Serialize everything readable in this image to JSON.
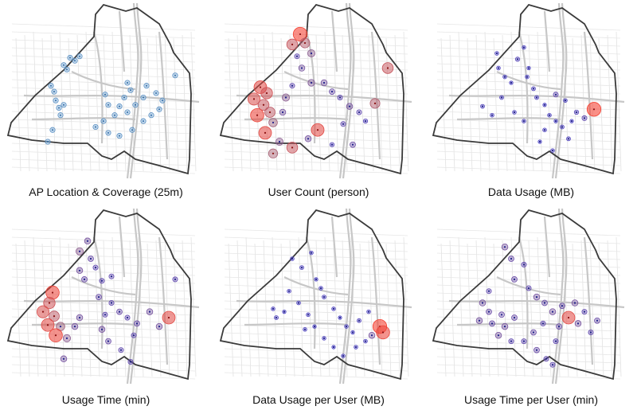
{
  "panels": [
    {
      "caption": "AP Location & Coverage (25m)",
      "style": "ap",
      "points": [
        [
          0.12,
          0.42,
          0
        ],
        [
          0.14,
          0.46,
          0
        ],
        [
          0.15,
          0.52,
          0
        ],
        [
          0.17,
          0.57,
          0
        ],
        [
          0.2,
          0.55,
          0
        ],
        [
          0.18,
          0.62,
          0
        ],
        [
          0.13,
          0.72,
          0
        ],
        [
          0.1,
          0.8,
          0
        ],
        [
          0.2,
          0.28,
          0
        ],
        [
          0.24,
          0.23,
          0
        ],
        [
          0.27,
          0.25,
          0
        ],
        [
          0.22,
          0.31,
          0
        ],
        [
          0.3,
          0.22,
          0
        ],
        [
          0.6,
          0.4,
          0
        ],
        [
          0.62,
          0.45,
          0
        ],
        [
          0.58,
          0.5,
          0
        ],
        [
          0.55,
          0.56,
          0
        ],
        [
          0.6,
          0.6,
          0
        ],
        [
          0.52,
          0.62,
          0
        ],
        [
          0.45,
          0.66,
          0
        ],
        [
          0.4,
          0.7,
          0
        ],
        [
          0.48,
          0.74,
          0
        ],
        [
          0.55,
          0.76,
          0
        ],
        [
          0.63,
          0.72,
          0
        ],
        [
          0.7,
          0.66,
          0
        ],
        [
          0.75,
          0.62,
          0
        ],
        [
          0.8,
          0.58,
          0
        ],
        [
          0.82,
          0.52,
          0
        ],
        [
          0.78,
          0.47,
          0
        ],
        [
          0.7,
          0.5,
          0
        ],
        [
          0.65,
          0.55,
          0
        ],
        [
          0.72,
          0.42,
          0
        ],
        [
          0.48,
          0.55,
          0
        ],
        [
          0.46,
          0.48,
          0
        ],
        [
          0.9,
          0.35,
          0
        ]
      ]
    },
    {
      "caption": "User Count (person)",
      "style": "heat",
      "points": [
        [
          0.35,
          0.07,
          0.95
        ],
        [
          0.3,
          0.14,
          0.7
        ],
        [
          0.38,
          0.13,
          0.6
        ],
        [
          0.42,
          0.2,
          0.4
        ],
        [
          0.1,
          0.43,
          0.85
        ],
        [
          0.14,
          0.47,
          0.75
        ],
        [
          0.06,
          0.51,
          0.8
        ],
        [
          0.12,
          0.55,
          0.7
        ],
        [
          0.16,
          0.6,
          0.65
        ],
        [
          0.08,
          0.62,
          0.9
        ],
        [
          0.18,
          0.67,
          0.5
        ],
        [
          0.13,
          0.74,
          0.85
        ],
        [
          0.22,
          0.8,
          0.4
        ],
        [
          0.18,
          0.88,
          0.55
        ],
        [
          0.3,
          0.84,
          0.7
        ],
        [
          0.36,
          0.3,
          0.3
        ],
        [
          0.42,
          0.4,
          0.35
        ],
        [
          0.5,
          0.4,
          0.3
        ],
        [
          0.55,
          0.46,
          0.25
        ],
        [
          0.6,
          0.5,
          0.2
        ],
        [
          0.66,
          0.56,
          0.3
        ],
        [
          0.72,
          0.6,
          0.2
        ],
        [
          0.82,
          0.54,
          0.6
        ],
        [
          0.76,
          0.66,
          0.15
        ],
        [
          0.62,
          0.68,
          0.2
        ],
        [
          0.46,
          0.72,
          0.85
        ],
        [
          0.4,
          0.78,
          0.3
        ],
        [
          0.55,
          0.82,
          0.15
        ],
        [
          0.68,
          0.82,
          0.25
        ],
        [
          0.9,
          0.3,
          0.7
        ],
        [
          0.3,
          0.42,
          0.2
        ],
        [
          0.26,
          0.5,
          0.4
        ],
        [
          0.24,
          0.6,
          0.3
        ],
        [
          0.33,
          0.22,
          0.2
        ]
      ]
    },
    {
      "caption": "Data Usage (MB)",
      "style": "heat",
      "points": [
        [
          0.25,
          0.2,
          0.1
        ],
        [
          0.38,
          0.24,
          0.15
        ],
        [
          0.42,
          0.16,
          0.1
        ],
        [
          0.45,
          0.3,
          0.08
        ],
        [
          0.3,
          0.36,
          0.1
        ],
        [
          0.5,
          0.5,
          0.12
        ],
        [
          0.55,
          0.55,
          0.08
        ],
        [
          0.58,
          0.62,
          0.1
        ],
        [
          0.62,
          0.66,
          0.08
        ],
        [
          0.66,
          0.7,
          0.12
        ],
        [
          0.72,
          0.66,
          0.08
        ],
        [
          0.75,
          0.6,
          0.15
        ],
        [
          0.86,
          0.58,
          0.95
        ],
        [
          0.8,
          0.64,
          0.2
        ],
        [
          0.68,
          0.52,
          0.1
        ],
        [
          0.62,
          0.48,
          0.2
        ],
        [
          0.16,
          0.56,
          0.12
        ],
        [
          0.22,
          0.62,
          0.1
        ],
        [
          0.28,
          0.5,
          0.12
        ],
        [
          0.55,
          0.72,
          0.1
        ],
        [
          0.52,
          0.8,
          0.08
        ],
        [
          0.6,
          0.86,
          0.1
        ],
        [
          0.7,
          0.78,
          0.12
        ],
        [
          0.36,
          0.6,
          0.1
        ],
        [
          0.42,
          0.66,
          0.1
        ],
        [
          0.48,
          0.44,
          0.12
        ],
        [
          0.34,
          0.4,
          0.08
        ],
        [
          0.26,
          0.3,
          0.1
        ],
        [
          0.44,
          0.36,
          0.1
        ]
      ]
    },
    {
      "caption": "Usage Time (min)",
      "style": "heat",
      "points": [
        [
          0.35,
          0.08,
          0.3
        ],
        [
          0.3,
          0.15,
          0.4
        ],
        [
          0.37,
          0.2,
          0.25
        ],
        [
          0.4,
          0.26,
          0.2
        ],
        [
          0.3,
          0.28,
          0.3
        ],
        [
          0.33,
          0.34,
          0.25
        ],
        [
          0.44,
          0.35,
          0.2
        ],
        [
          0.13,
          0.43,
          0.9
        ],
        [
          0.11,
          0.5,
          0.75
        ],
        [
          0.07,
          0.56,
          0.8
        ],
        [
          0.14,
          0.59,
          0.65
        ],
        [
          0.1,
          0.65,
          0.85
        ],
        [
          0.18,
          0.66,
          0.5
        ],
        [
          0.15,
          0.72,
          0.9
        ],
        [
          0.22,
          0.74,
          0.4
        ],
        [
          0.27,
          0.66,
          0.3
        ],
        [
          0.42,
          0.46,
          0.25
        ],
        [
          0.5,
          0.5,
          0.2
        ],
        [
          0.55,
          0.56,
          0.25
        ],
        [
          0.6,
          0.6,
          0.2
        ],
        [
          0.66,
          0.64,
          0.25
        ],
        [
          0.74,
          0.56,
          0.3
        ],
        [
          0.86,
          0.6,
          0.85
        ],
        [
          0.8,
          0.66,
          0.3
        ],
        [
          0.64,
          0.72,
          0.2
        ],
        [
          0.44,
          0.68,
          0.3
        ],
        [
          0.48,
          0.76,
          0.25
        ],
        [
          0.56,
          0.82,
          0.2
        ],
        [
          0.62,
          0.9,
          0.2
        ],
        [
          0.2,
          0.88,
          0.3
        ],
        [
          0.5,
          0.32,
          0.2
        ],
        [
          0.46,
          0.58,
          0.2
        ],
        [
          0.9,
          0.34,
          0.2
        ],
        [
          0.3,
          0.6,
          0.3
        ]
      ]
    },
    {
      "caption": "Data Usage per User (MB)",
      "style": "heat",
      "points": [
        [
          0.3,
          0.2,
          0.1
        ],
        [
          0.36,
          0.26,
          0.12
        ],
        [
          0.42,
          0.16,
          0.1
        ],
        [
          0.45,
          0.34,
          0.08
        ],
        [
          0.28,
          0.42,
          0.1
        ],
        [
          0.5,
          0.46,
          0.12
        ],
        [
          0.56,
          0.54,
          0.1
        ],
        [
          0.6,
          0.6,
          0.08
        ],
        [
          0.64,
          0.66,
          0.1
        ],
        [
          0.68,
          0.7,
          0.08
        ],
        [
          0.72,
          0.62,
          0.12
        ],
        [
          0.78,
          0.56,
          0.1
        ],
        [
          0.85,
          0.66,
          0.95
        ],
        [
          0.87,
          0.7,
          0.9
        ],
        [
          0.8,
          0.72,
          0.3
        ],
        [
          0.18,
          0.54,
          0.1
        ],
        [
          0.2,
          0.6,
          0.12
        ],
        [
          0.25,
          0.56,
          0.08
        ],
        [
          0.34,
          0.5,
          0.1
        ],
        [
          0.4,
          0.58,
          0.1
        ],
        [
          0.5,
          0.74,
          0.1
        ],
        [
          0.56,
          0.8,
          0.08
        ],
        [
          0.62,
          0.86,
          0.1
        ],
        [
          0.44,
          0.66,
          0.08
        ],
        [
          0.38,
          0.68,
          0.1
        ],
        [
          0.7,
          0.8,
          0.1
        ],
        [
          0.76,
          0.76,
          0.1
        ],
        [
          0.48,
          0.4,
          0.1
        ]
      ]
    },
    {
      "caption": "Usage Time per User (min)",
      "style": "heat",
      "points": [
        [
          0.3,
          0.12,
          0.3
        ],
        [
          0.34,
          0.2,
          0.25
        ],
        [
          0.42,
          0.24,
          0.2
        ],
        [
          0.36,
          0.34,
          0.25
        ],
        [
          0.45,
          0.4,
          0.2
        ],
        [
          0.5,
          0.46,
          0.3
        ],
        [
          0.55,
          0.5,
          0.25
        ],
        [
          0.6,
          0.56,
          0.3
        ],
        [
          0.66,
          0.52,
          0.25
        ],
        [
          0.74,
          0.5,
          0.3
        ],
        [
          0.8,
          0.56,
          0.2
        ],
        [
          0.7,
          0.6,
          0.85
        ],
        [
          0.76,
          0.64,
          0.3
        ],
        [
          0.64,
          0.66,
          0.25
        ],
        [
          0.54,
          0.64,
          0.2
        ],
        [
          0.48,
          0.7,
          0.25
        ],
        [
          0.42,
          0.76,
          0.2
        ],
        [
          0.5,
          0.82,
          0.25
        ],
        [
          0.56,
          0.88,
          0.2
        ],
        [
          0.62,
          0.76,
          0.2
        ],
        [
          0.16,
          0.5,
          0.3
        ],
        [
          0.2,
          0.56,
          0.25
        ],
        [
          0.14,
          0.62,
          0.3
        ],
        [
          0.22,
          0.64,
          0.25
        ],
        [
          0.28,
          0.58,
          0.25
        ],
        [
          0.3,
          0.66,
          0.3
        ],
        [
          0.36,
          0.6,
          0.25
        ],
        [
          0.26,
          0.72,
          0.3
        ],
        [
          0.34,
          0.76,
          0.2
        ],
        [
          0.88,
          0.62,
          0.25
        ],
        [
          0.84,
          0.7,
          0.2
        ],
        [
          0.2,
          0.42,
          0.2
        ],
        [
          0.6,
          0.92,
          0.2
        ]
      ]
    }
  ]
}
